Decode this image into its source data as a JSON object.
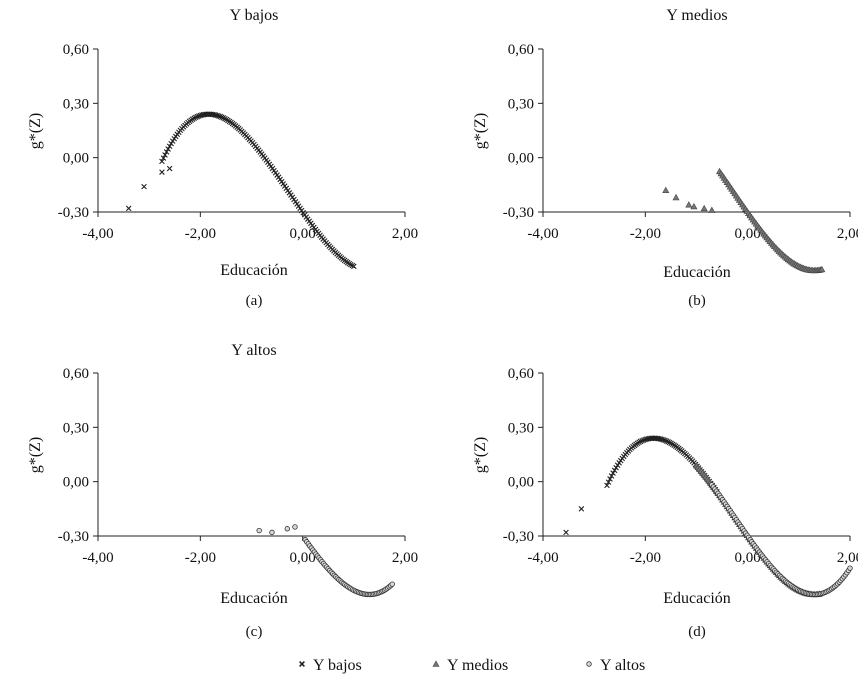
{
  "chart_data": [
    {
      "type": "scatter",
      "id": "a",
      "title": "Y bajos",
      "tag": "(a)",
      "xlabel": "Educación",
      "ylabel": "g*(Z)",
      "xlim": [
        -4.0,
        2.0
      ],
      "ylim": [
        -0.3,
        0.6
      ],
      "xticks": [
        -4.0,
        -2.0,
        0.0,
        2.0
      ],
      "xtick_labels": [
        "-4,00",
        "-2,00",
        "0,00",
        "2,00"
      ],
      "yticks": [
        -0.3,
        0.0,
        0.3,
        0.6
      ],
      "ytick_labels": [
        "-0,30",
        "0,00",
        "0,30",
        "0,60"
      ],
      "series": [
        {
          "name": "Y bajos",
          "marker": "x",
          "curve": {
            "from": -2.75,
            "to": 1.0,
            "a": 0.0556,
            "b": 0.0444,
            "c": -0.4,
            "d": -0.3
          },
          "points": [
            [
              -3.4,
              -0.28
            ],
            [
              -3.1,
              -0.16
            ],
            [
              -2.75,
              -0.08
            ],
            [
              -2.6,
              -0.06
            ]
          ]
        }
      ]
    },
    {
      "type": "scatter",
      "id": "b",
      "title": "Y medios",
      "tag": "(b)",
      "xlabel": "Educación",
      "ylabel": "g*(Z)",
      "xlim": [
        -4.0,
        2.0
      ],
      "ylim": [
        -0.3,
        0.6
      ],
      "xticks": [
        -4.0,
        -2.0,
        0.0,
        2.0
      ],
      "xtick_labels": [
        "-4,00",
        "-2,00",
        "0,00",
        "2,00"
      ],
      "yticks": [
        -0.3,
        0.0,
        0.3,
        0.6
      ],
      "ytick_labels": [
        "-0,30",
        "0,00",
        "0,30",
        "0,60"
      ],
      "series": [
        {
          "name": "Y medios",
          "marker": "triangle",
          "curve": {
            "from": -0.55,
            "to": 1.45,
            "a": 0.0556,
            "b": 0.0444,
            "c": -0.4,
            "d": -0.3
          },
          "points": [
            [
              -1.6,
              -0.18
            ],
            [
              -1.4,
              -0.22
            ],
            [
              -1.15,
              -0.26
            ],
            [
              -1.05,
              -0.27
            ],
            [
              -0.85,
              -0.28
            ],
            [
              -0.7,
              -0.29
            ]
          ]
        }
      ]
    },
    {
      "type": "scatter",
      "id": "c",
      "title": "Y altos",
      "tag": "(c)",
      "xlabel": "Educación",
      "ylabel": "g*(Z)",
      "xlim": [
        -4.0,
        2.0
      ],
      "ylim": [
        -0.3,
        0.6
      ],
      "xticks": [
        -4.0,
        -2.0,
        0.0,
        2.0
      ],
      "xtick_labels": [
        "-4,00",
        "-2,00",
        "0,00",
        "2,00"
      ],
      "yticks": [
        -0.3,
        0.0,
        0.3,
        0.6
      ],
      "ytick_labels": [
        "-0,30",
        "0,00",
        "0,30",
        "0,60"
      ],
      "series": [
        {
          "name": "Y altos",
          "marker": "circle",
          "curve": {
            "from": 0.05,
            "to": 1.75,
            "a": 0.0556,
            "b": 0.0444,
            "c": -0.4,
            "d": -0.3
          },
          "points": [
            [
              -0.85,
              -0.27
            ],
            [
              -0.6,
              -0.28
            ],
            [
              -0.3,
              -0.26
            ],
            [
              -0.15,
              -0.25
            ]
          ]
        }
      ]
    },
    {
      "type": "scatter",
      "id": "d",
      "title": "",
      "tag": "(d)",
      "xlabel": "Educación",
      "ylabel": "g*(Z)",
      "xlim": [
        -4.0,
        2.0
      ],
      "ylim": [
        -0.3,
        0.6
      ],
      "xticks": [
        -4.0,
        -2.0,
        0.0,
        2.0
      ],
      "xtick_labels": [
        "-4,00",
        "-2,00",
        "0,00",
        "2,00"
      ],
      "yticks": [
        -0.3,
        0.0,
        0.3,
        0.6
      ],
      "ytick_labels": [
        "-0,30",
        "0,00",
        "0,30",
        "0,60"
      ],
      "series": [
        {
          "name": "Y bajos",
          "marker": "x",
          "curve": {
            "from": -2.75,
            "to": -0.6,
            "a": 0.0556,
            "b": 0.0444,
            "c": -0.4,
            "d": -0.3
          },
          "points": [
            [
              -3.55,
              -0.28
            ],
            [
              -3.25,
              -0.15
            ]
          ]
        },
        {
          "name": "Y medios",
          "marker": "triangle",
          "curve": {
            "from": -1.0,
            "to": 1.4,
            "a": 0.0556,
            "b": 0.0444,
            "c": -0.4,
            "d": -0.3
          },
          "points": []
        },
        {
          "name": "Y altos",
          "marker": "circle",
          "curve": {
            "from": -0.7,
            "to": 2.0,
            "a": 0.0556,
            "b": 0.0444,
            "c": -0.4,
            "d": -0.3
          },
          "points": []
        }
      ]
    }
  ],
  "legend": {
    "placement": "bottom-center",
    "items": [
      {
        "label": "Y bajos",
        "marker": "x"
      },
      {
        "label": "Y medios",
        "marker": "triangle"
      },
      {
        "label": "Y altos",
        "marker": "circle"
      }
    ]
  }
}
